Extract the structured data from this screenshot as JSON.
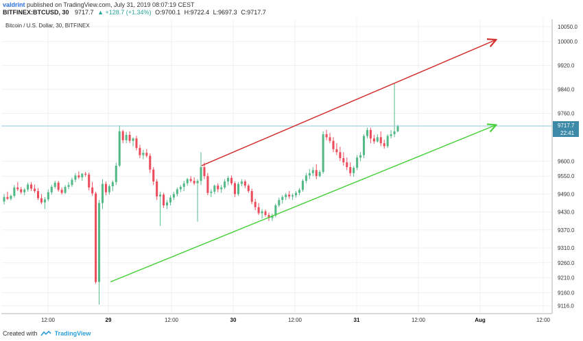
{
  "header": {
    "user": "valdrint",
    "published_text": "published on TradingView.com, July 31, 2019 08:07:19 CEST"
  },
  "symbol_bar": {
    "symbol": "BITFINEX:BTCUSD, 30",
    "last": "9717.7",
    "change": "▲ +128.7 (+1.34%)",
    "o": "O:9700.1",
    "h": "H:9722.4",
    "l": "L:9697.3",
    "c": "C:9717.7"
  },
  "chart_subtitle": "Bitcoin / U.S. Dollar, 30, BITFINEX",
  "footer": {
    "created_with": "Created with",
    "brand": "TradingView"
  },
  "colors": {
    "up": "#53b987",
    "down": "#eb4d5c",
    "red_line": "#d32f2f",
    "green_line": "#4cd13f",
    "price_line": "#8ec9d8",
    "price_label_bg": "#3c8aa8",
    "grid": "#eef0f3"
  },
  "chart_data": {
    "type": "candlestick",
    "title": "Bitcoin / U.S. Dollar, 30, BITFINEX",
    "x_ticks": [
      "12:00",
      "29",
      "12:00",
      "30",
      "12:00",
      "31",
      "12:00",
      "Aug",
      "12:00"
    ],
    "y_ticks": [
      "10050.0",
      "10000.0",
      "9920.0",
      "9840.0",
      "9760.0",
      "9600.0",
      "9550.0",
      "9490.0",
      "9430.0",
      "9370.0",
      "9310.0",
      "9260.0",
      "9210.0",
      "9160.0",
      "9116.0"
    ],
    "ylim": [
      9090,
      10075
    ],
    "last_price": "9717.7",
    "countdown": "22:41",
    "candles_ohlc": [
      [
        9465,
        9490,
        9455,
        9480
      ],
      [
        9480,
        9498,
        9470,
        9474
      ],
      [
        9474,
        9488,
        9468,
        9484
      ],
      [
        9484,
        9520,
        9478,
        9512
      ],
      [
        9512,
        9530,
        9500,
        9506
      ],
      [
        9506,
        9514,
        9490,
        9496
      ],
      [
        9496,
        9510,
        9486,
        9505
      ],
      [
        9505,
        9528,
        9498,
        9522
      ],
      [
        9522,
        9530,
        9500,
        9508
      ],
      [
        9508,
        9522,
        9494,
        9500
      ],
      [
        9500,
        9510,
        9470,
        9476
      ],
      [
        9476,
        9490,
        9456,
        9462
      ],
      [
        9462,
        9480,
        9440,
        9472
      ],
      [
        9472,
        9505,
        9466,
        9496
      ],
      [
        9496,
        9520,
        9488,
        9514
      ],
      [
        9514,
        9535,
        9508,
        9528
      ],
      [
        9528,
        9534,
        9498,
        9504
      ],
      [
        9504,
        9512,
        9488,
        9494
      ],
      [
        9494,
        9520,
        9490,
        9514
      ],
      [
        9514,
        9530,
        9506,
        9520
      ],
      [
        9520,
        9545,
        9514,
        9538
      ],
      [
        9538,
        9560,
        9530,
        9552
      ],
      [
        9552,
        9566,
        9540,
        9546
      ],
      [
        9546,
        9560,
        9534,
        9558
      ],
      [
        9558,
        9564,
        9548,
        9555
      ],
      [
        9555,
        9562,
        9502,
        9512
      ],
      [
        9512,
        9530,
        9484,
        9492
      ],
      [
        9492,
        9498,
        9190,
        9196
      ],
      [
        9196,
        9470,
        9120,
        9460
      ],
      [
        9460,
        9540,
        9440,
        9524
      ],
      [
        9524,
        9532,
        9486,
        9496
      ],
      [
        9496,
        9522,
        9488,
        9516
      ],
      [
        9516,
        9536,
        9500,
        9530
      ],
      [
        9530,
        9595,
        9520,
        9585
      ],
      [
        9585,
        9720,
        9580,
        9700
      ],
      [
        9700,
        9705,
        9660,
        9670
      ],
      [
        9670,
        9698,
        9660,
        9688
      ],
      [
        9688,
        9700,
        9660,
        9668
      ],
      [
        9668,
        9680,
        9650,
        9676
      ],
      [
        9676,
        9685,
        9636,
        9644
      ],
      [
        9644,
        9655,
        9610,
        9620
      ],
      [
        9620,
        9638,
        9606,
        9628
      ],
      [
        9628,
        9640,
        9612,
        9618
      ],
      [
        9618,
        9626,
        9560,
        9572
      ],
      [
        9572,
        9580,
        9520,
        9532
      ],
      [
        9532,
        9540,
        9470,
        9482
      ],
      [
        9482,
        9498,
        9384,
        9488
      ],
      [
        9488,
        9494,
        9444,
        9452
      ],
      [
        9452,
        9470,
        9440,
        9462
      ],
      [
        9462,
        9486,
        9452,
        9478
      ],
      [
        9478,
        9498,
        9470,
        9490
      ],
      [
        9490,
        9512,
        9482,
        9506
      ],
      [
        9506,
        9520,
        9496,
        9514
      ],
      [
        9514,
        9534,
        9500,
        9526
      ],
      [
        9526,
        9544,
        9518,
        9540
      ],
      [
        9540,
        9550,
        9528,
        9534
      ],
      [
        9534,
        9546,
        9520,
        9526
      ],
      [
        9526,
        9540,
        9398,
        9534
      ],
      [
        9534,
        9630,
        9520,
        9580
      ],
      [
        9580,
        9595,
        9540,
        9550
      ],
      [
        9550,
        9560,
        9486,
        9494
      ],
      [
        9494,
        9506,
        9480,
        9498
      ],
      [
        9498,
        9522,
        9490,
        9518
      ],
      [
        9518,
        9526,
        9496,
        9506
      ],
      [
        9506,
        9520,
        9494,
        9512
      ],
      [
        9512,
        9540,
        9506,
        9532
      ],
      [
        9532,
        9550,
        9520,
        9544
      ],
      [
        9544,
        9552,
        9520,
        9526
      ],
      [
        9526,
        9532,
        9480,
        9490
      ],
      [
        9490,
        9530,
        9484,
        9524
      ],
      [
        9524,
        9540,
        9516,
        9532
      ],
      [
        9532,
        9538,
        9510,
        9518
      ],
      [
        9518,
        9524,
        9494,
        9500
      ],
      [
        9500,
        9508,
        9456,
        9464
      ],
      [
        9464,
        9474,
        9436,
        9446
      ],
      [
        9446,
        9460,
        9420,
        9426
      ],
      [
        9426,
        9440,
        9408,
        9432
      ],
      [
        9432,
        9438,
        9414,
        9420
      ],
      [
        9420,
        9428,
        9400,
        9410
      ],
      [
        9410,
        9424,
        9400,
        9418
      ],
      [
        9418,
        9458,
        9412,
        9452
      ],
      [
        9452,
        9478,
        9446,
        9470
      ],
      [
        9470,
        9486,
        9458,
        9480
      ],
      [
        9480,
        9494,
        9470,
        9488
      ],
      [
        9488,
        9500,
        9474,
        9482
      ],
      [
        9482,
        9492,
        9470,
        9486
      ],
      [
        9486,
        9500,
        9478,
        9494
      ],
      [
        9494,
        9510,
        9486,
        9504
      ],
      [
        9504,
        9540,
        9498,
        9534
      ],
      [
        9534,
        9560,
        9526,
        9552
      ],
      [
        9552,
        9574,
        9540,
        9560
      ],
      [
        9560,
        9580,
        9550,
        9570
      ],
      [
        9570,
        9590,
        9540,
        9550
      ],
      [
        9550,
        9570,
        9546,
        9564
      ],
      [
        9564,
        9700,
        9558,
        9690
      ],
      [
        9690,
        9705,
        9670,
        9680
      ],
      [
        9680,
        9694,
        9660,
        9668
      ],
      [
        9668,
        9680,
        9630,
        9640
      ],
      [
        9640,
        9660,
        9620,
        9630
      ],
      [
        9630,
        9648,
        9600,
        9610
      ],
      [
        9610,
        9630,
        9585,
        9596
      ],
      [
        9596,
        9612,
        9570,
        9580
      ],
      [
        9580,
        9596,
        9550,
        9560
      ],
      [
        9560,
        9584,
        9548,
        9578
      ],
      [
        9578,
        9620,
        9570,
        9612
      ],
      [
        9612,
        9630,
        9600,
        9620
      ],
      [
        9620,
        9690,
        9610,
        9684
      ],
      [
        9684,
        9712,
        9676,
        9704
      ],
      [
        9704,
        9712,
        9660,
        9676
      ],
      [
        9676,
        9688,
        9658,
        9666
      ],
      [
        9666,
        9690,
        9662,
        9680
      ],
      [
        9680,
        9700,
        9650,
        9660
      ],
      [
        9660,
        9672,
        9642,
        9650
      ],
      [
        9650,
        9690,
        9644,
        9684
      ],
      [
        9684,
        9704,
        9676,
        9690
      ],
      [
        9690,
        9862,
        9680,
        9700
      ],
      [
        9700,
        9722,
        9697,
        9718
      ]
    ]
  }
}
